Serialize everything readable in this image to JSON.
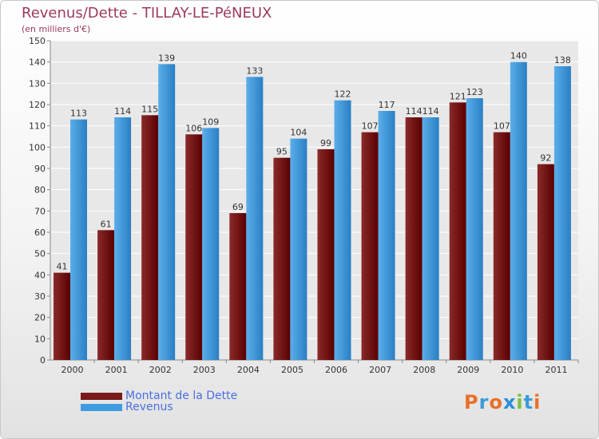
{
  "header": {
    "title": "Revenus/Dette - TILLAY-LE-PéNEUX",
    "subtitle": "(en milliers d'€)"
  },
  "logo": {
    "text": "Proxiti",
    "letter_colors": [
      "#e8702a",
      "#3a9bd8",
      "#e8702a",
      "#2a8fd8",
      "#7ac143",
      "#3a9bd8",
      "#e8702a"
    ]
  },
  "chart_data": {
    "type": "bar",
    "title": "Revenus/Dette - TILLAY-LE-PéNEUX",
    "subtitle": "(en milliers d'€)",
    "xlabel": "",
    "ylabel": "",
    "categories": [
      "2000",
      "2001",
      "2002",
      "2003",
      "2004",
      "2005",
      "2006",
      "2007",
      "2008",
      "2009",
      "2010",
      "2011"
    ],
    "series": [
      {
        "name": "Montant de la Dette",
        "color": "#7a1a1a",
        "values": [
          41,
          61,
          115,
          106,
          69,
          95,
          99,
          107,
          114,
          121,
          107,
          92
        ]
      },
      {
        "name": "Revenus",
        "color": "#3f9be0",
        "values": [
          113,
          114,
          139,
          109,
          133,
          104,
          122,
          117,
          114,
          123,
          140,
          138
        ]
      }
    ],
    "ylim": [
      0,
      150
    ],
    "yticks": [
      0,
      10,
      20,
      30,
      40,
      50,
      60,
      70,
      80,
      90,
      100,
      110,
      120,
      130,
      140,
      150
    ],
    "grid": true,
    "legend_position": "bottom-left"
  }
}
